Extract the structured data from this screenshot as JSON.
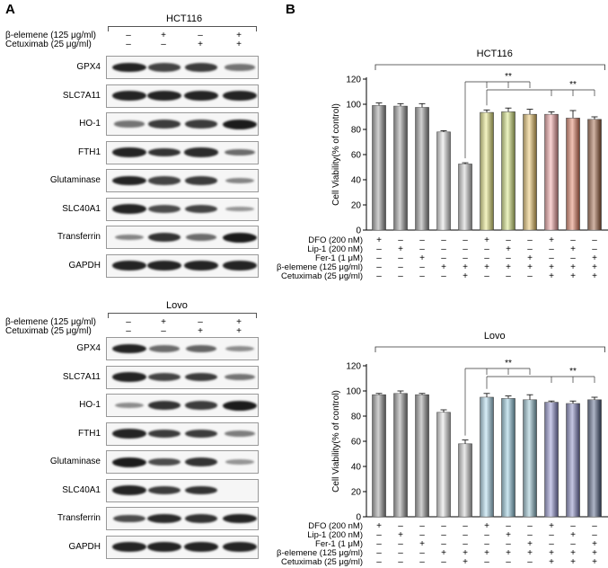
{
  "panels": {
    "a": "A",
    "b": "B"
  },
  "western_blots": [
    {
      "cell_line": "HCT116",
      "treatments": [
        {
          "label": "β-elemene (125 μg/ml)",
          "signs": [
            "–",
            "+",
            "–",
            "+"
          ]
        },
        {
          "label": "Cetuximab (25 μg/ml)",
          "signs": [
            "–",
            "–",
            "+",
            "+"
          ]
        }
      ],
      "blots": [
        {
          "name": "GPX4",
          "intensity": [
            0.95,
            0.75,
            0.8,
            0.45
          ]
        },
        {
          "name": "SLC7A11",
          "intensity": [
            0.95,
            0.95,
            0.95,
            0.95
          ]
        },
        {
          "name": "HO-1",
          "intensity": [
            0.45,
            0.8,
            0.8,
            1.0
          ]
        },
        {
          "name": "FTH1",
          "intensity": [
            0.95,
            0.85,
            0.9,
            0.5
          ]
        },
        {
          "name": "Glutaminase",
          "intensity": [
            0.95,
            0.75,
            0.8,
            0.35
          ]
        },
        {
          "name": "SLC40A1",
          "intensity": [
            0.95,
            0.7,
            0.75,
            0.25
          ]
        },
        {
          "name": "Transferrin",
          "intensity": [
            0.35,
            0.85,
            0.5,
            1.0
          ]
        },
        {
          "name": "GAPDH",
          "intensity": [
            0.95,
            0.95,
            0.95,
            0.95
          ]
        }
      ]
    },
    {
      "cell_line": "Lovo",
      "treatments": [
        {
          "label": "β-elemene (125 μg/ml)",
          "signs": [
            "–",
            "+",
            "–",
            "+"
          ]
        },
        {
          "label": "Cetuximab (25 μg/ml)",
          "signs": [
            "–",
            "–",
            "+",
            "+"
          ]
        }
      ],
      "blots": [
        {
          "name": "GPX4",
          "intensity": [
            0.95,
            0.5,
            0.55,
            0.3
          ]
        },
        {
          "name": "SLC7A11",
          "intensity": [
            0.95,
            0.75,
            0.8,
            0.45
          ]
        },
        {
          "name": "HO-1",
          "intensity": [
            0.3,
            0.85,
            0.8,
            1.0
          ]
        },
        {
          "name": "FTH1",
          "intensity": [
            0.95,
            0.8,
            0.8,
            0.4
          ]
        },
        {
          "name": "Glutaminase",
          "intensity": [
            1.0,
            0.7,
            0.85,
            0.25
          ]
        },
        {
          "name": "SLC40A1",
          "intensity": [
            0.95,
            0.8,
            0.85,
            0.0
          ]
        },
        {
          "name": "Transferrin",
          "intensity": [
            0.7,
            0.9,
            0.85,
            0.95
          ]
        },
        {
          "name": "GAPDH",
          "intensity": [
            0.95,
            0.95,
            0.95,
            0.95
          ]
        }
      ]
    }
  ],
  "chart_data": [
    {
      "type": "bar",
      "title": "HCT116",
      "ylabel": "Cell Viability(% of control)",
      "ylim": [
        0,
        120
      ],
      "yticks": [
        0,
        20,
        40,
        60,
        80,
        100,
        120
      ],
      "values": [
        99,
        98.5,
        97.5,
        78,
        52.5,
        93.5,
        94,
        92,
        92,
        89,
        88
      ],
      "errors": [
        2,
        2,
        3,
        1,
        1,
        2,
        3,
        4,
        2,
        6,
        2
      ],
      "colors": [
        "#9a9a9a",
        "#9a9a9a",
        "#9a9a9a",
        "#e2e2e2",
        "#cfcfcf",
        "#e6e67a",
        "#d6e678",
        "#ecc260",
        "#f6a0a0",
        "#e0785a",
        "#9a5a38"
      ],
      "significance": [
        {
          "label": "**",
          "from_bar": 4,
          "to_bars": [
            5,
            6,
            7
          ]
        },
        {
          "label": "**",
          "from_bar": 5,
          "to_bars": [
            8,
            9,
            10
          ]
        }
      ],
      "conditions": [
        {
          "label": "DFO (200 nM)",
          "signs": [
            "+",
            "–",
            "–",
            "–",
            "–",
            "+",
            "–",
            "–",
            "+",
            "–",
            "–"
          ]
        },
        {
          "label": "Lip-1 (200 nM)",
          "signs": [
            "–",
            "+",
            "–",
            "–",
            "–",
            "–",
            "+",
            "–",
            "–",
            "+",
            "–"
          ]
        },
        {
          "label": "Fer-1 (1 μM)",
          "signs": [
            "–",
            "–",
            "+",
            "–",
            "–",
            "–",
            "–",
            "+",
            "–",
            "–",
            "+"
          ]
        },
        {
          "label": "β-elemene (125 μg/ml)",
          "signs": [
            "–",
            "–",
            "–",
            "+",
            "+",
            "+",
            "+",
            "+",
            "+",
            "+",
            "+"
          ]
        },
        {
          "label": "Cetuximab (25 μg/ml)",
          "signs": [
            "–",
            "–",
            "–",
            "–",
            "+",
            "–",
            "–",
            "–",
            "+",
            "+",
            "+"
          ]
        }
      ]
    },
    {
      "type": "bar",
      "title": "Lovo",
      "ylabel": "Cell Viability(% of control)",
      "ylim": [
        0,
        120
      ],
      "yticks": [
        0,
        20,
        40,
        60,
        80,
        100,
        120
      ],
      "values": [
        97,
        98,
        97,
        83,
        58,
        95,
        94,
        93,
        91,
        90,
        93
      ],
      "errors": [
        1,
        2,
        1,
        2,
        3,
        3,
        2,
        4,
        1,
        2,
        2
      ],
      "colors": [
        "#9a9a9a",
        "#9a9a9a",
        "#9a9a9a",
        "#e2e2e2",
        "#cfcfcf",
        "#a9d9ef",
        "#8fc9df",
        "#8fbfcf",
        "#8d8fd2",
        "#7d80c0",
        "#4a5a80"
      ],
      "significance": [
        {
          "label": "**",
          "from_bar": 4,
          "to_bars": [
            5,
            6,
            7
          ]
        },
        {
          "label": "**",
          "from_bar": 5,
          "to_bars": [
            8,
            9,
            10
          ]
        }
      ],
      "conditions": [
        {
          "label": "DFO (200 nM)",
          "signs": [
            "+",
            "–",
            "–",
            "–",
            "–",
            "+",
            "–",
            "–",
            "+",
            "–",
            "–"
          ]
        },
        {
          "label": "Lip-1 (200 nM)",
          "signs": [
            "–",
            "+",
            "–",
            "–",
            "–",
            "–",
            "+",
            "–",
            "–",
            "+",
            "–"
          ]
        },
        {
          "label": "Fer-1 (1 μM)",
          "signs": [
            "–",
            "–",
            "+",
            "–",
            "–",
            "–",
            "–",
            "+",
            "–",
            "–",
            "+"
          ]
        },
        {
          "label": "β-elemene (125 μg/ml)",
          "signs": [
            "–",
            "–",
            "–",
            "+",
            "+",
            "+",
            "+",
            "+",
            "+",
            "+",
            "+"
          ]
        },
        {
          "label": "Cetuximab (25 μg/ml)",
          "signs": [
            "–",
            "–",
            "–",
            "–",
            "+",
            "–",
            "–",
            "–",
            "+",
            "+",
            "+"
          ]
        }
      ]
    }
  ]
}
